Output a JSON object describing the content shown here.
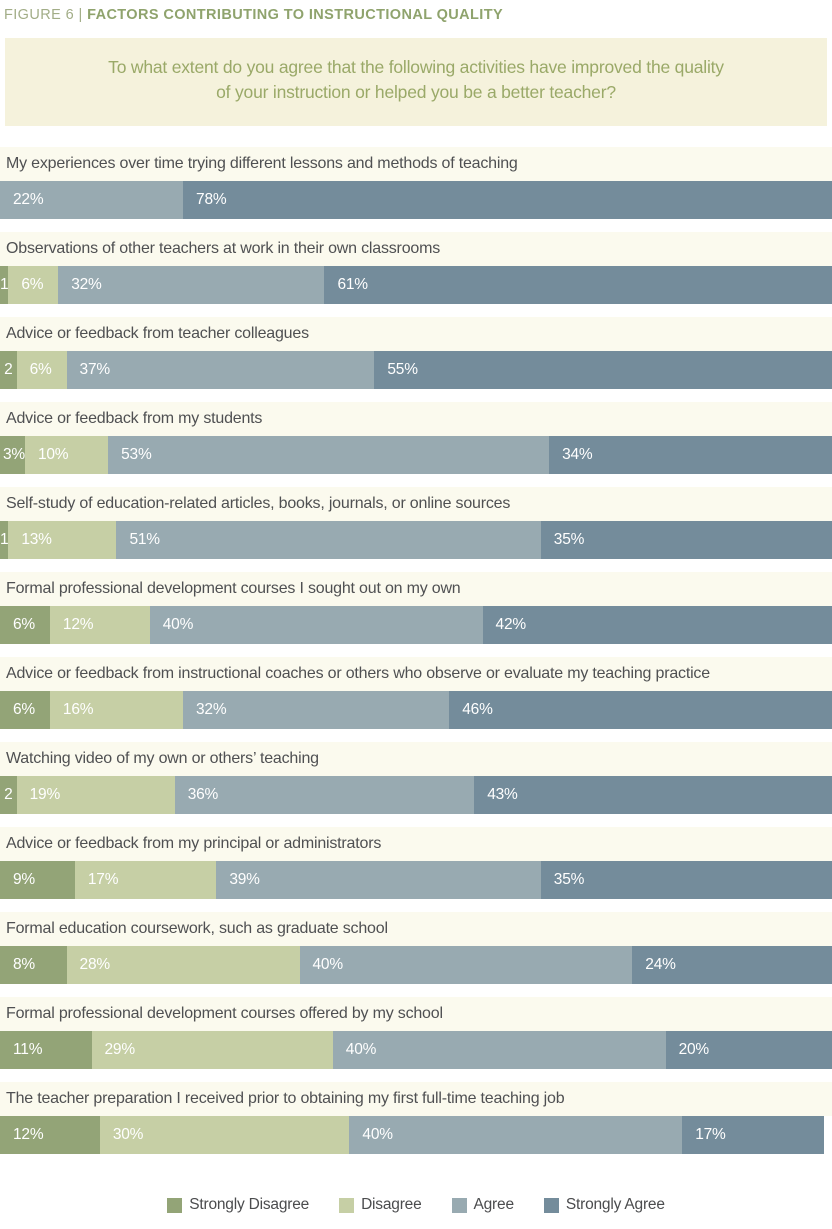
{
  "figure": {
    "label": "FIGURE 6 | ",
    "title": "FACTORS CONTRIBUTING TO INSTRUCTIONAL QUALITY"
  },
  "question": {
    "line1": "To what extent do you agree that the following activities have improved the quality",
    "line2": "of your instruction or helped you be a better teacher?"
  },
  "colors": {
    "strongly_disagree": "#93a477",
    "disagree": "#c6cfa5",
    "agree": "#98aab1",
    "strongly_agree": "#748c9b",
    "question_box_bg": "#f5f2dc",
    "question_text": "#9aa968",
    "row_label_bg": "#fbfaee",
    "row_label_text": "#4f5052",
    "figure_title": "#8fa36d",
    "bar_value_text": "#ffffff"
  },
  "chart_data": {
    "type": "bar",
    "orientation": "horizontal-stacked",
    "units": "percent",
    "xlim": [
      0,
      100
    ],
    "grid": false,
    "legend_position": "bottom",
    "categories": [
      "My experiences over time trying different lessons and methods of teaching",
      "Observations of other teachers at work in their own classrooms",
      "Advice or feedback from teacher colleagues",
      "Advice or feedback from my students",
      "Self-study of education-related articles, books, journals, or online sources",
      "Formal professional development courses I sought out on my own",
      "Advice or feedback from instructional coaches or others who observe or evaluate my teaching practice",
      "Watching video of my own or others’ teaching",
      "Advice or feedback from my principal or administrators",
      "Formal education coursework, such as graduate school",
      "Formal professional development courses offered by my school",
      "The teacher preparation I received prior to obtaining my first full-time teaching job"
    ],
    "series": [
      {
        "name": "Strongly Disagree",
        "color": "#93a477",
        "values": [
          0,
          1,
          2,
          3,
          1,
          6,
          6,
          2,
          9,
          8,
          11,
          12
        ],
        "display": [
          "",
          "1",
          "2",
          "3%",
          "1",
          "6%",
          "6%",
          "2",
          "9%",
          "8%",
          "11%",
          "12%"
        ]
      },
      {
        "name": "Disagree",
        "color": "#c6cfa5",
        "values": [
          0,
          6,
          6,
          10,
          13,
          12,
          16,
          19,
          17,
          28,
          29,
          30
        ],
        "display": [
          "",
          "6%",
          "6%",
          "10%",
          "13%",
          "12%",
          "16%",
          "19%",
          "17%",
          "28%",
          "29%",
          "30%"
        ]
      },
      {
        "name": "Agree",
        "color": "#98aab1",
        "values": [
          22,
          32,
          37,
          53,
          51,
          40,
          32,
          36,
          39,
          40,
          40,
          40
        ],
        "display": [
          "22%",
          "32%",
          "37%",
          "53%",
          "51%",
          "40%",
          "32%",
          "36%",
          "39%",
          "40%",
          "40%",
          "40%"
        ]
      },
      {
        "name": "Strongly Agree",
        "color": "#748c9b",
        "values": [
          78,
          61,
          55,
          34,
          35,
          42,
          46,
          43,
          35,
          24,
          20,
          17
        ],
        "display": [
          "78%",
          "61%",
          "55%",
          "34%",
          "35%",
          "42%",
          "46%",
          "43%",
          "35%",
          "24%",
          "20%",
          "17%"
        ]
      }
    ]
  },
  "legend": {
    "items": [
      {
        "label": "Strongly Disagree",
        "color": "#93a477"
      },
      {
        "label": "Disagree",
        "color": "#c6cfa5"
      },
      {
        "label": "Agree",
        "color": "#98aab1"
      },
      {
        "label": "Strongly Agree",
        "color": "#748c9b"
      }
    ]
  }
}
